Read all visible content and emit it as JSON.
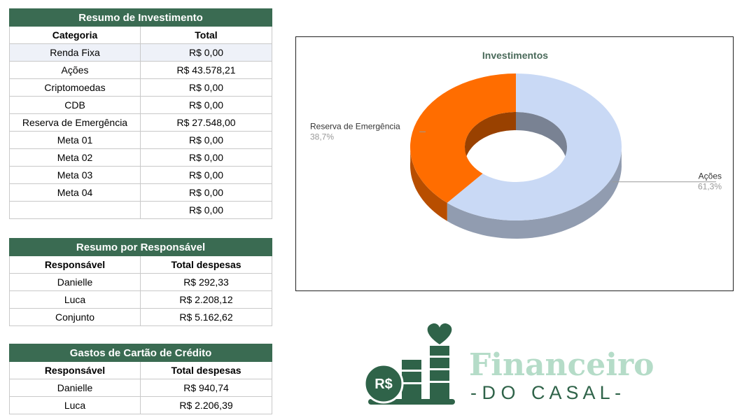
{
  "investment_summary": {
    "title": "Resumo de Investimento",
    "headers": [
      "Categoria",
      "Total"
    ],
    "rows": [
      {
        "category": "Renda Fixa",
        "total": "R$ 0,00"
      },
      {
        "category": "Ações",
        "total": "R$ 43.578,21"
      },
      {
        "category": "Criptomoedas",
        "total": "R$ 0,00"
      },
      {
        "category": "CDB",
        "total": "R$ 0,00"
      },
      {
        "category": "Reserva de Emergência",
        "total": "R$ 27.548,00"
      },
      {
        "category": "Meta 01",
        "total": "R$ 0,00"
      },
      {
        "category": "Meta 02",
        "total": "R$ 0,00"
      },
      {
        "category": "Meta 03",
        "total": "R$ 0,00"
      },
      {
        "category": "Meta 04",
        "total": "R$ 0,00"
      },
      {
        "category": "",
        "total": "R$ 0,00"
      }
    ]
  },
  "responsible_summary": {
    "title": "Resumo por Responsável",
    "headers": [
      "Responsável",
      "Total despesas"
    ],
    "rows": [
      {
        "name": "Danielle",
        "total": "R$ 292,33"
      },
      {
        "name": "Luca",
        "total": "R$ 2.208,12"
      },
      {
        "name": "Conjunto",
        "total": "R$ 5.162,62"
      }
    ]
  },
  "credit_card": {
    "title": "Gastos de Cartão de Crédito",
    "headers": [
      "Responsável",
      "Total despesas"
    ],
    "rows": [
      {
        "name": "Danielle",
        "total": "R$ 940,74"
      },
      {
        "name": "Luca",
        "total": "R$ 2.206,39"
      }
    ]
  },
  "chart_data": {
    "type": "pie",
    "title": "Investimentos",
    "donut": true,
    "style": "3d",
    "slices": [
      {
        "label": "Ações",
        "value": 43578.21,
        "percent": "61,3%",
        "color": "#c9d9f5"
      },
      {
        "label": "Reserva de Emergência",
        "value": 27548.0,
        "percent": "38,7%",
        "color": "#ff6d00"
      }
    ]
  },
  "logo": {
    "word1": "Financeiro",
    "word2": "- D O   C A S A L -",
    "coin": "R$",
    "colors": {
      "dark": "#2f6349",
      "mid": "#4c8a6a",
      "light": "#b5dcc8"
    }
  }
}
